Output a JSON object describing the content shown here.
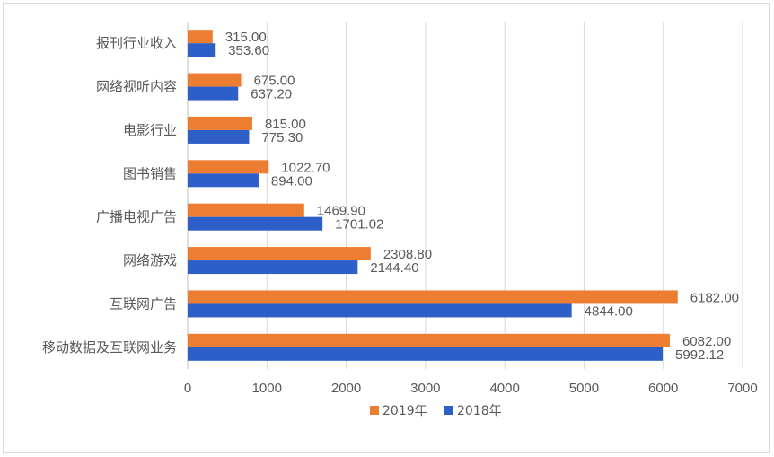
{
  "chart_data": {
    "type": "bar",
    "orientation": "horizontal",
    "categories": [
      "报刊行业收入",
      "网络视听内容",
      "电影行业",
      "图书销售",
      "广播电视广告",
      "网络游戏",
      "互联网广告",
      "移动数据及互联网业务"
    ],
    "series": [
      {
        "name": "2019年",
        "color": "#ED7D31",
        "values": [
          315.0,
          675.0,
          815.0,
          1022.7,
          1469.9,
          2308.8,
          6182.0,
          6082.0
        ],
        "labels": [
          "315.00",
          "675.00",
          "815.00",
          "1022.70",
          "1469.90",
          "2308.80",
          "6182.00",
          "6082.00"
        ]
      },
      {
        "name": "2018年",
        "color": "#2E5EC8",
        "values": [
          353.6,
          637.2,
          775.3,
          894.0,
          1701.02,
          2144.4,
          4844.0,
          5992.12
        ],
        "labels": [
          "353.60",
          "637.20",
          "775.30",
          "894.00",
          "1701.02",
          "2144.40",
          "4844.00",
          "5992.12"
        ]
      }
    ],
    "xlim": [
      0,
      7000
    ],
    "xticks": [
      "0",
      "1000",
      "2000",
      "3000",
      "4000",
      "5000",
      "6000",
      "7000"
    ],
    "grid": true,
    "legend": "bottom"
  }
}
